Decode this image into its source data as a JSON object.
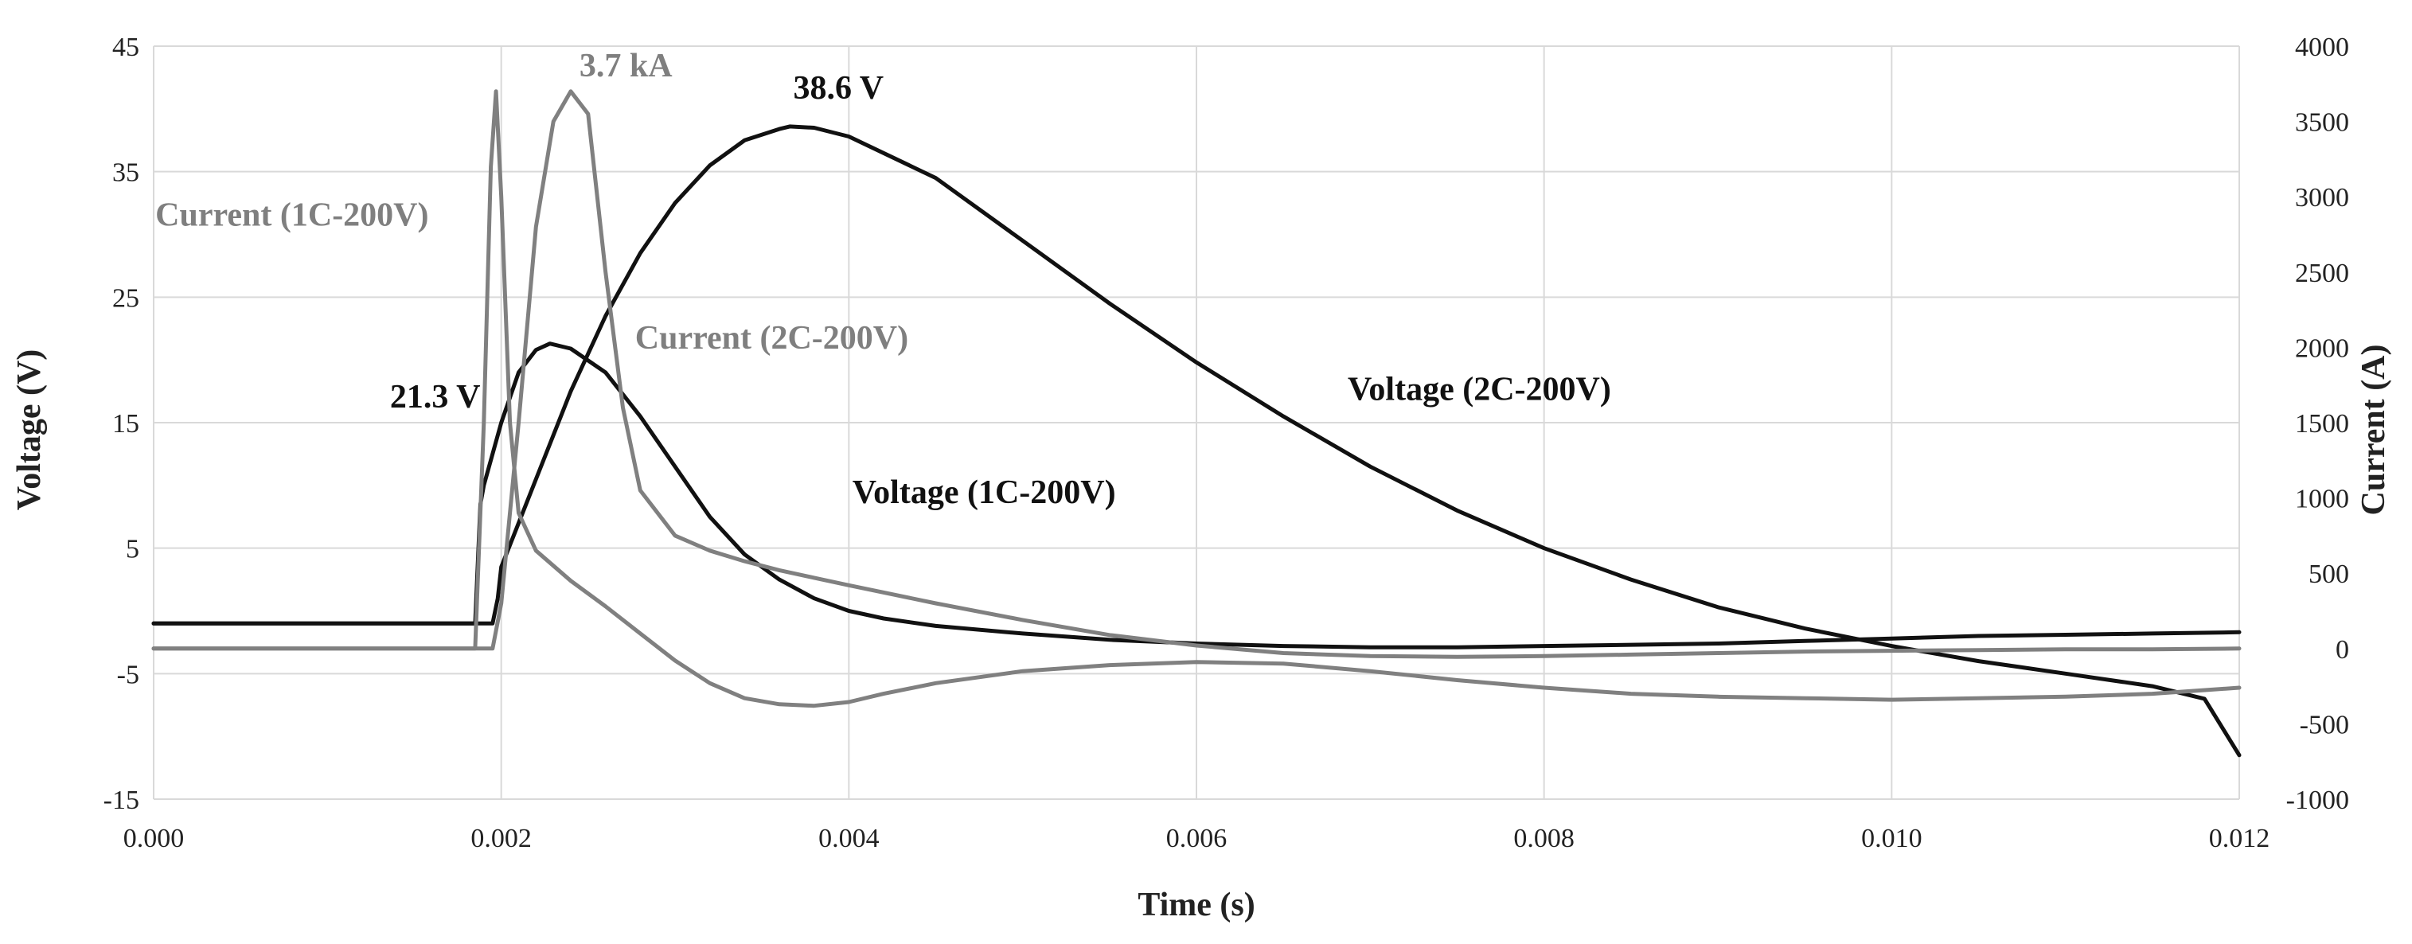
{
  "chart_data": {
    "type": "line",
    "title": "",
    "xlabel": "Time (s)",
    "ylabel": "Voltage (V)",
    "y2label": "Current (A)",
    "xlim": [
      0,
      0.012
    ],
    "ylim": [
      -15,
      45
    ],
    "y2lim": [
      -1000,
      4000
    ],
    "grid": true,
    "x_ticks": [
      {
        "value": 0.0,
        "label": "0.000"
      },
      {
        "value": 0.002,
        "label": "0.002"
      },
      {
        "value": 0.004,
        "label": "0.004"
      },
      {
        "value": 0.006,
        "label": "0.006"
      },
      {
        "value": 0.008,
        "label": "0.008"
      },
      {
        "value": 0.01,
        "label": "0.010"
      },
      {
        "value": 0.012,
        "label": "0.012"
      }
    ],
    "y_ticks": [
      {
        "value": -15,
        "label": "-15"
      },
      {
        "value": -5,
        "label": "-5"
      },
      {
        "value": 5,
        "label": "5"
      },
      {
        "value": 15,
        "label": "15"
      },
      {
        "value": 25,
        "label": "25"
      },
      {
        "value": 35,
        "label": "35"
      },
      {
        "value": 45,
        "label": "45"
      }
    ],
    "y2_ticks": [
      {
        "value": -1000,
        "label": "-1000"
      },
      {
        "value": -500,
        "label": "-500"
      },
      {
        "value": 0,
        "label": "0"
      },
      {
        "value": 500,
        "label": "500"
      },
      {
        "value": 1000,
        "label": "1000"
      },
      {
        "value": 1500,
        "label": "1500"
      },
      {
        "value": 2000,
        "label": "2000"
      },
      {
        "value": 2500,
        "label": "2500"
      },
      {
        "value": 3000,
        "label": "3000"
      },
      {
        "value": 3500,
        "label": "3500"
      },
      {
        "value": 4000,
        "label": "4000"
      }
    ],
    "series": [
      {
        "name": "Voltage (1C-200V)",
        "axis": "left",
        "color": "#111111",
        "x": [
          0,
          0.0005,
          0.001,
          0.0015,
          0.00185,
          0.00188,
          0.0019,
          0.002,
          0.0021,
          0.0022,
          0.00228,
          0.0024,
          0.0026,
          0.0028,
          0.003,
          0.0032,
          0.0034,
          0.0036,
          0.0038,
          0.004,
          0.0042,
          0.0045,
          0.005,
          0.0055,
          0.006,
          0.0065,
          0.007,
          0.0075,
          0.008,
          0.0085,
          0.009,
          0.0095,
          0.01,
          0.0105,
          0.011,
          0.0115,
          0.012
        ],
        "values": [
          -1.0,
          -1.0,
          -1.0,
          -1.0,
          -1.0,
          8.5,
          10.0,
          15.0,
          19.0,
          20.8,
          21.3,
          20.9,
          19.0,
          15.5,
          11.5,
          7.5,
          4.5,
          2.5,
          1.0,
          0.0,
          -0.6,
          -1.2,
          -1.8,
          -2.3,
          -2.6,
          -2.8,
          -2.9,
          -2.9,
          -2.8,
          -2.7,
          -2.6,
          -2.4,
          -2.2,
          -2.0,
          -1.9,
          -1.8,
          -1.7
        ]
      },
      {
        "name": "Voltage (2C-200V)",
        "axis": "left",
        "color": "#111111",
        "x": [
          0,
          0.0005,
          0.001,
          0.0015,
          0.00195,
          0.00198,
          0.002,
          0.0022,
          0.0024,
          0.0026,
          0.0028,
          0.003,
          0.0032,
          0.0034,
          0.0036,
          0.00366,
          0.0038,
          0.004,
          0.0045,
          0.005,
          0.0055,
          0.006,
          0.0065,
          0.007,
          0.0075,
          0.008,
          0.0085,
          0.009,
          0.0095,
          0.01,
          0.0105,
          0.011,
          0.0115,
          0.0118,
          0.012
        ],
        "values": [
          -1.0,
          -1.0,
          -1.0,
          -1.0,
          -1.0,
          1.0,
          3.5,
          10.5,
          17.5,
          23.5,
          28.5,
          32.5,
          35.5,
          37.5,
          38.4,
          38.6,
          38.5,
          37.8,
          34.5,
          29.5,
          24.5,
          19.8,
          15.5,
          11.5,
          8.0,
          5.0,
          2.5,
          0.3,
          -1.4,
          -2.8,
          -4.0,
          -5.0,
          -6.0,
          -7.0,
          -11.5
        ]
      },
      {
        "name": "Current (1C-200V)",
        "axis": "right",
        "color": "#808080",
        "x": [
          0,
          0.0005,
          0.001,
          0.0015,
          0.00185,
          0.0019,
          0.00194,
          0.00197,
          0.002,
          0.00205,
          0.0021,
          0.0022,
          0.0024,
          0.0026,
          0.0028,
          0.003,
          0.0032,
          0.0034,
          0.0036,
          0.0038,
          0.004,
          0.0042,
          0.0045,
          0.005,
          0.0055,
          0.006,
          0.0065,
          0.007,
          0.0075,
          0.008,
          0.0085,
          0.009,
          0.0095,
          0.01,
          0.0105,
          0.011,
          0.0115,
          0.012
        ],
        "values": [
          0,
          0,
          0,
          0,
          0,
          1500,
          3200,
          3700,
          3000,
          1500,
          900,
          650,
          450,
          280,
          100,
          -80,
          -230,
          -330,
          -370,
          -380,
          -355,
          -300,
          -230,
          -150,
          -110,
          -90,
          -100,
          -150,
          -210,
          -260,
          -300,
          -320,
          -330,
          -340,
          -330,
          -320,
          -300,
          -260
        ]
      },
      {
        "name": "Current (2C-200V)",
        "axis": "right",
        "color": "#808080",
        "x": [
          0,
          0.0005,
          0.001,
          0.0015,
          0.00195,
          0.002,
          0.0021,
          0.0022,
          0.0023,
          0.0024,
          0.0025,
          0.0026,
          0.0027,
          0.0028,
          0.003,
          0.0032,
          0.0034,
          0.0036,
          0.0038,
          0.004,
          0.0045,
          0.005,
          0.0055,
          0.006,
          0.0065,
          0.007,
          0.0075,
          0.008,
          0.0085,
          0.009,
          0.0095,
          0.01,
          0.0105,
          0.011,
          0.0115,
          0.012
        ],
        "values": [
          0,
          0,
          0,
          0,
          0,
          300,
          1500,
          2800,
          3500,
          3700,
          3550,
          2500,
          1600,
          1050,
          750,
          650,
          580,
          520,
          470,
          420,
          300,
          190,
          90,
          20,
          -30,
          -50,
          -55,
          -50,
          -40,
          -30,
          -20,
          -15,
          -10,
          -5,
          -5,
          0
        ]
      }
    ],
    "annotations": [
      {
        "text": "3.7 kA",
        "x": 0.00245,
        "y_right": 3800,
        "color": "#7f7f7f"
      },
      {
        "text": "38.6 V",
        "x": 0.00368,
        "y": 40.8,
        "color": "#111111"
      },
      {
        "text": "21.3 V",
        "x": 0.00136,
        "y": 16.2,
        "color": "#111111"
      },
      {
        "text": "Current (1C-200V)",
        "x": 1e-05,
        "y": 30.7,
        "color": "#7f7f7f"
      },
      {
        "text": "Current (2C-200V)",
        "x": 0.00277,
        "y": 20.9,
        "color": "#7f7f7f"
      },
      {
        "text": "Voltage (2C-200V)",
        "x": 0.00687,
        "y": 16.8,
        "color": "#111111"
      },
      {
        "text": "Voltage (1C-200V)",
        "x": 0.00402,
        "y": 8.6,
        "color": "#111111"
      }
    ]
  }
}
